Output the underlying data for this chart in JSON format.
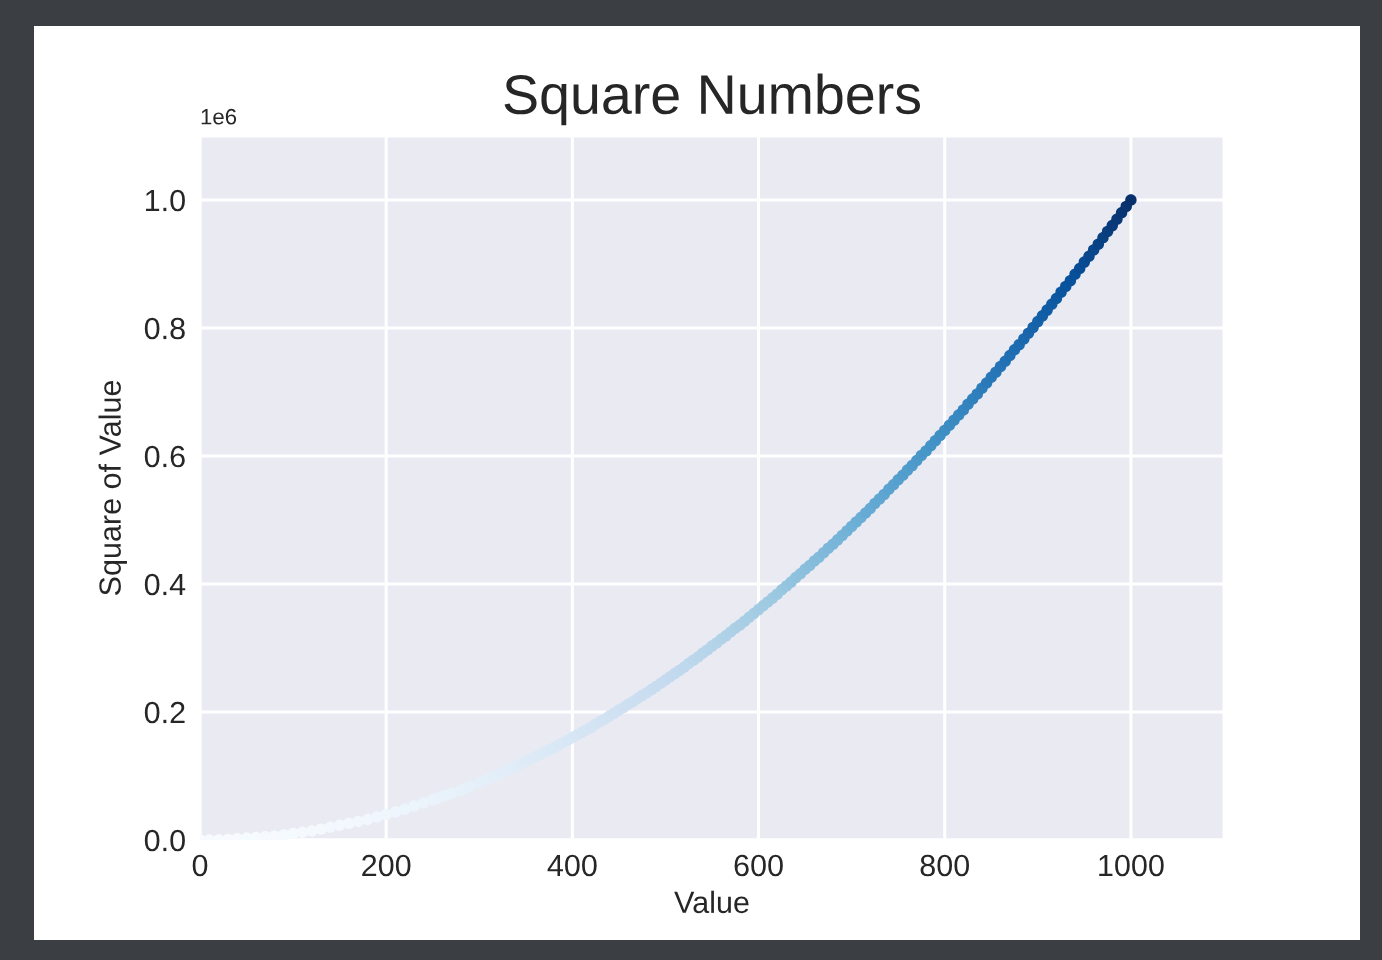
{
  "chart_data": {
    "type": "scatter",
    "title": "Square Numbers",
    "xlabel": "Value",
    "ylabel": "Square of Value",
    "annotations": [
      "1e6"
    ],
    "marker": "circle",
    "grid": true,
    "xlim": [
      0,
      1100
    ],
    "ylim": [
      0,
      1.1
    ],
    "xticks": [
      0,
      200,
      400,
      600,
      800,
      1000
    ],
    "yticks": [
      {
        "value": 0,
        "label": "0.0"
      },
      0.2,
      0.4,
      0.6,
      0.8,
      {
        "value": 1,
        "label": "1.0"
      }
    ],
    "x": [
      0,
      10,
      20,
      30,
      40,
      50,
      60,
      70,
      80,
      90,
      100,
      110,
      120,
      130,
      140,
      150,
      160,
      170,
      180,
      190,
      200,
      210,
      220,
      230,
      240,
      250,
      255,
      260,
      265,
      270,
      280,
      285,
      290,
      300,
      305,
      310,
      315,
      320,
      325,
      330,
      335,
      340,
      345,
      350,
      355,
      360,
      365,
      370,
      375,
      380,
      385,
      390,
      395,
      400,
      405,
      410,
      415,
      420,
      425,
      430,
      435,
      440,
      445,
      450,
      455,
      460,
      465,
      470,
      475,
      480,
      485,
      490,
      495,
      500,
      505,
      510,
      515,
      520,
      525,
      530,
      535,
      540,
      545,
      550,
      555,
      560,
      565,
      570,
      575,
      580,
      585,
      590,
      595,
      600,
      605,
      610,
      615,
      620,
      625,
      630,
      635,
      640,
      645,
      650,
      655,
      660,
      665,
      670,
      675,
      680,
      685,
      690,
      695,
      700,
      705,
      710,
      715,
      720,
      725,
      730,
      735,
      740,
      745,
      750,
      755,
      760,
      765,
      770,
      775,
      780,
      785,
      790,
      795,
      800,
      805,
      810,
      815,
      820,
      825,
      830,
      835,
      840,
      845,
      850,
      855,
      860,
      865,
      870,
      875,
      880,
      885,
      890,
      895,
      900,
      905,
      910,
      915,
      920,
      925,
      930,
      935,
      940,
      945,
      950,
      955,
      960,
      965,
      970,
      975,
      980,
      985,
      990,
      995,
      1000
    ],
    "values": [
      0,
      0,
      0,
      0.001,
      0.002,
      0.003,
      0.004,
      0.005,
      0.006,
      0.008,
      0.01,
      0.012,
      0.014,
      0.017,
      0.02,
      0.023,
      0.026,
      0.029,
      0.032,
      0.036,
      0.04,
      0.044,
      0.048,
      0.053,
      0.058,
      0.063,
      0.065,
      0.068,
      0.07,
      0.073,
      0.078,
      0.081,
      0.084,
      0.09,
      0.093,
      0.096,
      0.099,
      0.102,
      0.106,
      0.109,
      0.112,
      0.116,
      0.119,
      0.123,
      0.126,
      0.13,
      0.133,
      0.137,
      0.141,
      0.144,
      0.148,
      0.152,
      0.156,
      0.16,
      0.164,
      0.168,
      0.172,
      0.176,
      0.181,
      0.185,
      0.189,
      0.194,
      0.198,
      0.203,
      0.207,
      0.212,
      0.216,
      0.221,
      0.226,
      0.23,
      0.235,
      0.24,
      0.245,
      0.25,
      0.255,
      0.26,
      0.265,
      0.27,
      0.276,
      0.281,
      0.286,
      0.292,
      0.297,
      0.303,
      0.308,
      0.314,
      0.319,
      0.325,
      0.331,
      0.336,
      0.342,
      0.348,
      0.354,
      0.36,
      0.366,
      0.372,
      0.378,
      0.384,
      0.391,
      0.397,
      0.403,
      0.41,
      0.416,
      0.423,
      0.429,
      0.436,
      0.442,
      0.449,
      0.456,
      0.462,
      0.469,
      0.476,
      0.483,
      0.49,
      0.497,
      0.504,
      0.511,
      0.518,
      0.526,
      0.533,
      0.54,
      0.548,
      0.555,
      0.563,
      0.57,
      0.578,
      0.585,
      0.593,
      0.601,
      0.608,
      0.616,
      0.624,
      0.632,
      0.64,
      0.648,
      0.656,
      0.664,
      0.672,
      0.681,
      0.689,
      0.697,
      0.706,
      0.714,
      0.723,
      0.731,
      0.74,
      0.748,
      0.757,
      0.766,
      0.774,
      0.783,
      0.792,
      0.801,
      0.81,
      0.819,
      0.828,
      0.837,
      0.846,
      0.856,
      0.865,
      0.874,
      0.884,
      0.893,
      0.903,
      0.912,
      0.922,
      0.931,
      0.941,
      0.951,
      0.96,
      0.97,
      0.98,
      0.99,
      1.0
    ],
    "colors": [
      "#f7fbff",
      "#f7fbff",
      "#f7fbff",
      "#f7fbff",
      "#f7fbff",
      "#f6fbff",
      "#f6fbff",
      "#f6faff",
      "#f6faff",
      "#f5fafe",
      "#f5fafe",
      "#f5f9fe",
      "#f4f9fe",
      "#f4f9fe",
      "#f3f8fe",
      "#f3f8fe",
      "#f2f8fd",
      "#f1f7fd",
      "#f1f7fd",
      "#f0f6fd",
      "#eff6fc",
      "#eef5fc",
      "#edf5fc",
      "#ecf4fc",
      "#ebf4fb",
      "#eaf3fb",
      "#eaf3fb",
      "#e9f2fb",
      "#e9f2fb",
      "#e8f2fa",
      "#e7f1fa",
      "#e7f1fa",
      "#e6f0fa",
      "#e5eff9",
      "#e4eff9",
      "#e4eff9",
      "#e3eef9",
      "#e3eef8",
      "#e2edf8",
      "#e1edf8",
      "#e1edf8",
      "#e0ecf8",
      "#dfecf7",
      "#deebf7",
      "#deebf7",
      "#ddeaf7",
      "#dceaf6",
      "#dce9f6",
      "#dbe9f6",
      "#dae9f6",
      "#dae8f6",
      "#d9e8f5",
      "#d8e7f5",
      "#d7e7f5",
      "#d7e6f4",
      "#d6e5f4",
      "#d5e5f4",
      "#d4e4f4",
      "#d3e4f3",
      "#d3e3f3",
      "#d2e3f3",
      "#d1e2f3",
      "#d0e2f2",
      "#cfe1f2",
      "#cee0f2",
      "#cde0f1",
      "#ccdff1",
      "#ccdff1",
      "#cbdef1",
      "#cadef0",
      "#c9ddf0",
      "#c8dcf0",
      "#c7dcef",
      "#c6dbef",
      "#c4daee",
      "#c3daee",
      "#c1d9ed",
      "#bfd8ed",
      "#bed8ec",
      "#bcd7ec",
      "#bad6eb",
      "#b9d5ea",
      "#b7d5ea",
      "#b5d4e9",
      "#b3d3e8",
      "#b2d2e8",
      "#b0d2e7",
      "#aed1e7",
      "#acd0e6",
      "#aacfe5",
      "#a8cee5",
      "#a7cee4",
      "#a5cde3",
      "#a3cce3",
      "#a1cbe2",
      "#9fcae1",
      "#9dc9e1",
      "#9ac8e0",
      "#98c7e0",
      "#95c5df",
      "#92c4df",
      "#90c2de",
      "#8dc1dd",
      "#8bbfdd",
      "#88bedc",
      "#85bcdc",
      "#83bbdb",
      "#80b9da",
      "#7db8da",
      "#7ab6d9",
      "#78b5d9",
      "#75b3d8",
      "#72b2d7",
      "#6fb0d7",
      "#6cafd6",
      "#6aadd5",
      "#67abd5",
      "#65aad4",
      "#63a8d3",
      "#60a7d2",
      "#5ea5d1",
      "#5ba3d0",
      "#59a2cf",
      "#56a0ce",
      "#549ecd",
      "#529dcc",
      "#4f9bcb",
      "#4d99ca",
      "#4a97c9",
      "#4796c8",
      "#4594c7",
      "#4292c6",
      "#4090c5",
      "#3e8ec4",
      "#3c8cc3",
      "#3a8ac2",
      "#3888c1",
      "#3585c0",
      "#3383be",
      "#3181bd",
      "#2f7fbc",
      "#2d7dbb",
      "#2a7aba",
      "#2878b9",
      "#2676b8",
      "#2474b6",
      "#2171b5",
      "#206fb4",
      "#1e6db2",
      "#1c6bb0",
      "#1a68ae",
      "#1966ad",
      "#1764ab",
      "#1562a9",
      "#135fa7",
      "#115da5",
      "#105ba4",
      "#0e58a2",
      "#0c56a0",
      "#0a549e",
      "#08519c",
      "#084f99",
      "#084c95",
      "#084a91",
      "#08478d",
      "#08458a",
      "#084286",
      "#084082",
      "#083d7e",
      "#083a7b",
      "#083877",
      "#083573",
      "#08336f",
      "#08306b"
    ]
  }
}
